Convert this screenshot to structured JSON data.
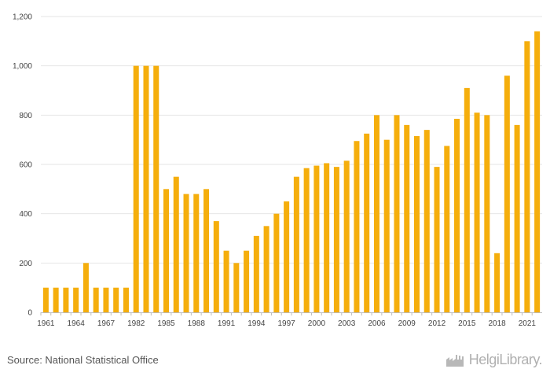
{
  "source_text": "Source: National Statistical Office",
  "logo": {
    "icon": "factory-icon",
    "text": "HelgiLibrary."
  },
  "colors": {
    "bar": "#F5AE0C",
    "grid": "#e6e6e6",
    "axis": "#bdbdbd",
    "text": "#444444"
  },
  "chart_data": {
    "type": "bar",
    "title": "",
    "xlabel": "",
    "ylabel": "",
    "ylim": [
      0,
      1200
    ],
    "yticks": [
      0,
      200,
      400,
      600,
      800,
      1000,
      1200
    ],
    "ytick_labels": [
      "0",
      "200",
      "400",
      "600",
      "800",
      "1,000",
      "1,200"
    ],
    "categories": [
      "1961",
      "1962",
      "1963",
      "1964",
      "1965",
      "1966",
      "1967",
      "1968",
      "1969",
      "1982",
      "1983",
      "1984",
      "1985",
      "1986",
      "1987",
      "1988",
      "1989",
      "1990",
      "1991",
      "1992",
      "1993",
      "1994",
      "1995",
      "1996",
      "1997",
      "1998",
      "1999",
      "2000",
      "2001",
      "2002",
      "2003",
      "2004",
      "2005",
      "2006",
      "2007",
      "2008",
      "2009",
      "2010",
      "2011",
      "2012",
      "2013",
      "2014",
      "2015",
      "2016",
      "2017",
      "2018",
      "2019",
      "2020",
      "2021",
      "2022"
    ],
    "values": [
      100,
      100,
      100,
      100,
      200,
      100,
      100,
      100,
      100,
      1000,
      1000,
      1000,
      500,
      550,
      480,
      480,
      500,
      370,
      250,
      200,
      250,
      310,
      350,
      400,
      450,
      550,
      585,
      595,
      605,
      590,
      615,
      695,
      725,
      800,
      700,
      800,
      760,
      715,
      740,
      590,
      675,
      785,
      910,
      810,
      800,
      240,
      960,
      760,
      1100,
      1140
    ],
    "xtick_labels": [
      "1961",
      "1964",
      "1967",
      "1982",
      "1985",
      "1988",
      "1991",
      "1994",
      "1997",
      "2000",
      "2003",
      "2006",
      "2009",
      "2012",
      "2015",
      "2018",
      "2021"
    ],
    "grid": true,
    "legend": "none"
  }
}
